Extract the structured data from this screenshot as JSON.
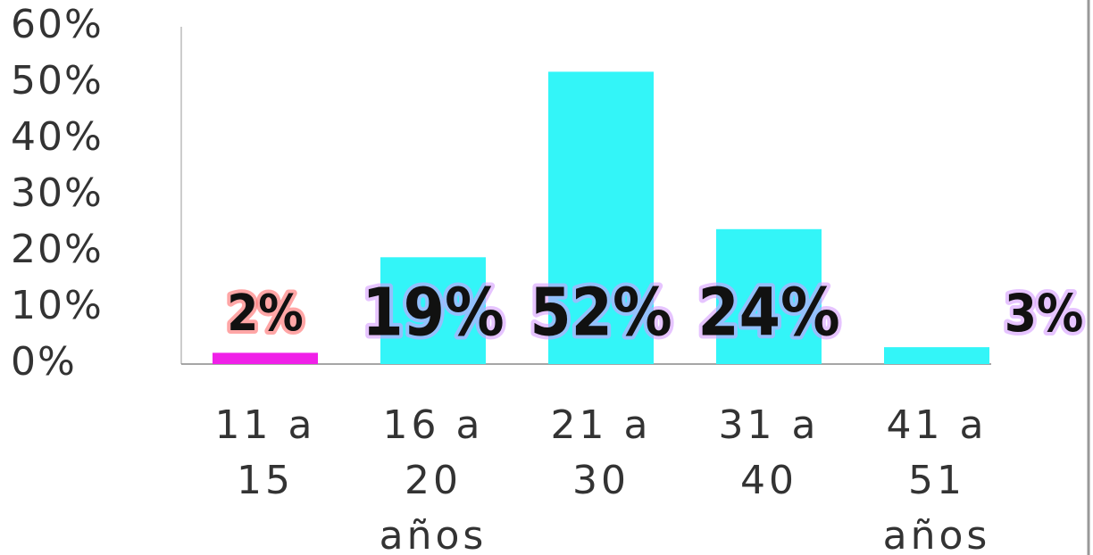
{
  "chart_data": {
    "type": "bar",
    "categories": [
      "11 a 15",
      "16 a 20 años",
      "21 a 30",
      "31 a 40",
      "41 a 51 años"
    ],
    "values": [
      2,
      19,
      52,
      24,
      3
    ],
    "value_labels": [
      "2%",
      "19%",
      "52%",
      "24%",
      "3%"
    ],
    "colors": [
      "#f020e8",
      "#33f5f8",
      "#33f5f8",
      "#33f5f8",
      "#33f5f8"
    ],
    "ylim": [
      0,
      60
    ],
    "yticks": [
      {
        "value": 0,
        "label": "0%"
      },
      {
        "value": 10,
        "label": "10%"
      },
      {
        "value": 20,
        "label": "20%"
      },
      {
        "value": 30,
        "label": "30%"
      },
      {
        "value": 40,
        "label": "40%"
      },
      {
        "value": 50,
        "label": "50%"
      },
      {
        "value": 60,
        "label": "60%"
      }
    ]
  }
}
